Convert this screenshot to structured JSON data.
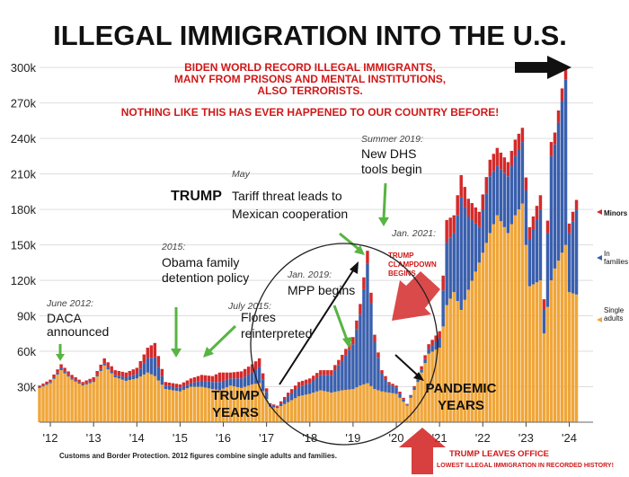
{
  "chart_data": {
    "type": "bar",
    "stacked": true,
    "title": "ILLEGAL IMMIGRATION INTO THE U.S.",
    "ylim": [
      0,
      310000
    ],
    "yticks": [
      {
        "value": 30000,
        "label": "30k"
      },
      {
        "value": 60000,
        "label": "60k"
      },
      {
        "value": 90000,
        "label": "90k"
      },
      {
        "value": 120000,
        "label": "120k"
      },
      {
        "value": 150000,
        "label": "150k"
      },
      {
        "value": 180000,
        "label": "180k"
      },
      {
        "value": 210000,
        "label": "210k"
      },
      {
        "value": 240000,
        "label": "240k"
      },
      {
        "value": 270000,
        "label": "270k"
      },
      {
        "value": 300000,
        "label": "300k"
      }
    ],
    "xlim": [
      2011.75,
      2024.55
    ],
    "xticks": [
      {
        "value": 2012,
        "label": "'12"
      },
      {
        "value": 2013,
        "label": "'13"
      },
      {
        "value": 2014,
        "label": "'14"
      },
      {
        "value": 2015,
        "label": "'15"
      },
      {
        "value": 2016,
        "label": "'16"
      },
      {
        "value": 2017,
        "label": "'17"
      },
      {
        "value": 2018,
        "label": "'18"
      },
      {
        "value": 2019,
        "label": "'19"
      },
      {
        "value": 2020,
        "label": "'20"
      },
      {
        "value": 2021,
        "label": "'21"
      },
      {
        "value": 2022,
        "label": "'22"
      },
      {
        "value": 2023,
        "label": "'23"
      },
      {
        "value": 2024,
        "label": "'24"
      }
    ],
    "series": [
      {
        "name": "Single adults",
        "color": "#f0a63a"
      },
      {
        "name": "In families",
        "color": "#3a5fad"
      },
      {
        "name": "Minors",
        "color": "#d42a2a"
      }
    ],
    "monthly_totals": [
      {
        "date": "2011-10",
        "single": 29000,
        "families": 1000,
        "minors": 1000
      },
      {
        "date": "2012-01",
        "single": 33000,
        "families": 1000,
        "minors": 2000
      },
      {
        "date": "2012-04",
        "single": 44000,
        "families": 2000,
        "minors": 3000
      },
      {
        "date": "2012-07",
        "single": 36000,
        "families": 1000,
        "minors": 3000
      },
      {
        "date": "2012-10",
        "single": 31000,
        "families": 1000,
        "minors": 2000
      },
      {
        "date": "2013-01",
        "single": 34000,
        "families": 1000,
        "minors": 3000
      },
      {
        "date": "2013-04",
        "single": 48000,
        "families": 2000,
        "minors": 4000
      },
      {
        "date": "2013-07",
        "single": 38000,
        "families": 2000,
        "minors": 4000
      },
      {
        "date": "2013-10",
        "single": 35000,
        "families": 3000,
        "minors": 4000
      },
      {
        "date": "2014-01",
        "single": 37000,
        "families": 4000,
        "minors": 5000
      },
      {
        "date": "2014-04",
        "single": 42000,
        "families": 12000,
        "minors": 9000
      },
      {
        "date": "2014-06",
        "single": 39000,
        "families": 16000,
        "minors": 12000
      },
      {
        "date": "2014-09",
        "single": 28000,
        "families": 3000,
        "minors": 3000
      },
      {
        "date": "2015-01",
        "single": 26000,
        "families": 3000,
        "minors": 3000
      },
      {
        "date": "2015-04",
        "single": 30000,
        "families": 3000,
        "minors": 4000
      },
      {
        "date": "2015-07",
        "single": 30000,
        "families": 5000,
        "minors": 5000
      },
      {
        "date": "2015-10",
        "single": 28000,
        "families": 6000,
        "minors": 5000
      },
      {
        "date": "2015-12",
        "single": 27000,
        "families": 7000,
        "minors": 8000
      },
      {
        "date": "2016-03",
        "single": 31000,
        "families": 6000,
        "minors": 5000
      },
      {
        "date": "2016-06",
        "single": 29000,
        "families": 8000,
        "minors": 6000
      },
      {
        "date": "2016-09",
        "single": 32000,
        "families": 10000,
        "minors": 7000
      },
      {
        "date": "2016-11",
        "single": 33000,
        "families": 14000,
        "minors": 7000
      },
      {
        "date": "2017-02",
        "single": 13000,
        "families": 2000,
        "minors": 1000
      },
      {
        "date": "2017-04",
        "single": 12000,
        "families": 1000,
        "minors": 1000
      },
      {
        "date": "2017-07",
        "single": 17000,
        "families": 5000,
        "minors": 3000
      },
      {
        "date": "2017-10",
        "single": 22000,
        "families": 8000,
        "minors": 4000
      },
      {
        "date": "2018-01",
        "single": 24000,
        "families": 9000,
        "minors": 4000
      },
      {
        "date": "2018-04",
        "single": 27000,
        "families": 13000,
        "minors": 4000
      },
      {
        "date": "2018-07",
        "single": 25000,
        "families": 15000,
        "minors": 4000
      },
      {
        "date": "2018-10",
        "single": 27000,
        "families": 25000,
        "minors": 5000
      },
      {
        "date": "2019-01",
        "single": 28000,
        "families": 38000,
        "minors": 6000
      },
      {
        "date": "2019-03",
        "single": 31000,
        "families": 60000,
        "minors": 9000
      },
      {
        "date": "2019-05",
        "single": 33000,
        "families": 101000,
        "minors": 11000
      },
      {
        "date": "2019-07",
        "single": 28000,
        "families": 40000,
        "minors": 6000
      },
      {
        "date": "2019-09",
        "single": 26000,
        "families": 15000,
        "minors": 3000
      },
      {
        "date": "2019-11",
        "single": 25000,
        "families": 7000,
        "minors": 2000
      },
      {
        "date": "2020-01",
        "single": 24000,
        "families": 5000,
        "minors": 2000
      },
      {
        "date": "2020-04",
        "single": 14000,
        "families": 1000,
        "minors": 500
      },
      {
        "date": "2020-07",
        "single": 34000,
        "families": 2000,
        "minors": 2000
      },
      {
        "date": "2020-10",
        "single": 58000,
        "families": 4000,
        "minors": 4000
      },
      {
        "date": "2021-01",
        "single": 63000,
        "families": 8000,
        "minors": 6000
      },
      {
        "date": "2021-03",
        "single": 99000,
        "families": 53000,
        "minors": 19000
      },
      {
        "date": "2021-05",
        "single": 110000,
        "families": 50000,
        "minors": 15000
      },
      {
        "date": "2021-07",
        "single": 95000,
        "families": 95000,
        "minors": 19000
      },
      {
        "date": "2021-09",
        "single": 112000,
        "families": 62000,
        "minors": 15000
      },
      {
        "date": "2021-12",
        "single": 135000,
        "families": 30000,
        "minors": 13000
      },
      {
        "date": "2022-03",
        "single": 160000,
        "families": 48000,
        "minors": 14000
      },
      {
        "date": "2022-05",
        "single": 175000,
        "families": 42000,
        "minors": 15000
      },
      {
        "date": "2022-08",
        "single": 160000,
        "families": 48000,
        "minors": 12000
      },
      {
        "date": "2022-10",
        "single": 175000,
        "families": 50000,
        "minors": 14000
      },
      {
        "date": "2022-12",
        "single": 185000,
        "families": 52000,
        "minors": 12000
      },
      {
        "date": "2023-02",
        "single": 115000,
        "families": 40000,
        "minors": 10000
      },
      {
        "date": "2023-05",
        "single": 120000,
        "families": 60000,
        "minors": 12000
      },
      {
        "date": "2023-06",
        "single": 75000,
        "families": 20000,
        "minors": 9000
      },
      {
        "date": "2023-08",
        "single": 120000,
        "families": 105000,
        "minors": 12000
      },
      {
        "date": "2023-09",
        "single": 130000,
        "families": 105000,
        "minors": 10000
      },
      {
        "date": "2023-12",
        "single": 150000,
        "families": 140000,
        "minors": 11000
      },
      {
        "date": "2024-01",
        "single": 110000,
        "families": 50000,
        "minors": 8000
      },
      {
        "date": "2024-03",
        "single": 108000,
        "families": 72000,
        "minors": 8000
      }
    ]
  },
  "annotations": {
    "headline_line1": "BIDEN WORLD RECORD ILLEGAL IMMIGRANTS,",
    "headline_line2": "MANY FROM PRISONS AND MENTAL INSTITUTIONS,",
    "headline_line3": "ALSO TERRORISTS.",
    "headline_line4": "NOTHING LIKE THIS HAS EVER HAPPENED TO OUR COUNTRY BEFORE!",
    "daca_date": "June 2012:",
    "daca_text": "DACA announced",
    "daca_text1": "DACA",
    "daca_text2": "announced",
    "obama_date": "2015:",
    "obama_text1": "Obama family",
    "obama_text2": "detention policy",
    "flores_date": "July 2015:",
    "flores_text1": "Flores",
    "flores_text2": "reinterpreted",
    "tariff_date": "May",
    "tariff_trump": "TRUMP",
    "tariff_text1": "Tariff threat leads to",
    "tariff_text2": "Mexican cooperation",
    "dhs_date": "Summer 2019:",
    "dhs_text1": "New DHS",
    "dhs_text2": "tools begin",
    "mpp_date": "Jan. 2019:",
    "mpp_text": "MPP begins",
    "clampdown_date": "Jan. 2021:",
    "clampdown_text1": "TRUMP",
    "clampdown_text2": "CLAMPDOWN",
    "clampdown_text3": "BEGINS",
    "trump_years1": "TRUMP",
    "trump_years2": "YEARS",
    "pandemic1": "PANDEMIC",
    "pandemic2": "YEARS",
    "leaves1": "TRUMP LEAVES OFFICE",
    "leaves2": "LOWEST ILLEGAL IMMIGRATION IN RECORDED HISTORY!",
    "legend_minors": "Minors",
    "legend_families1": "In",
    "legend_families2": "families",
    "legend_single1": "Single",
    "legend_single2": "adults",
    "source": "Customs and Border Protection. 2012 figures combine single adults and families."
  }
}
